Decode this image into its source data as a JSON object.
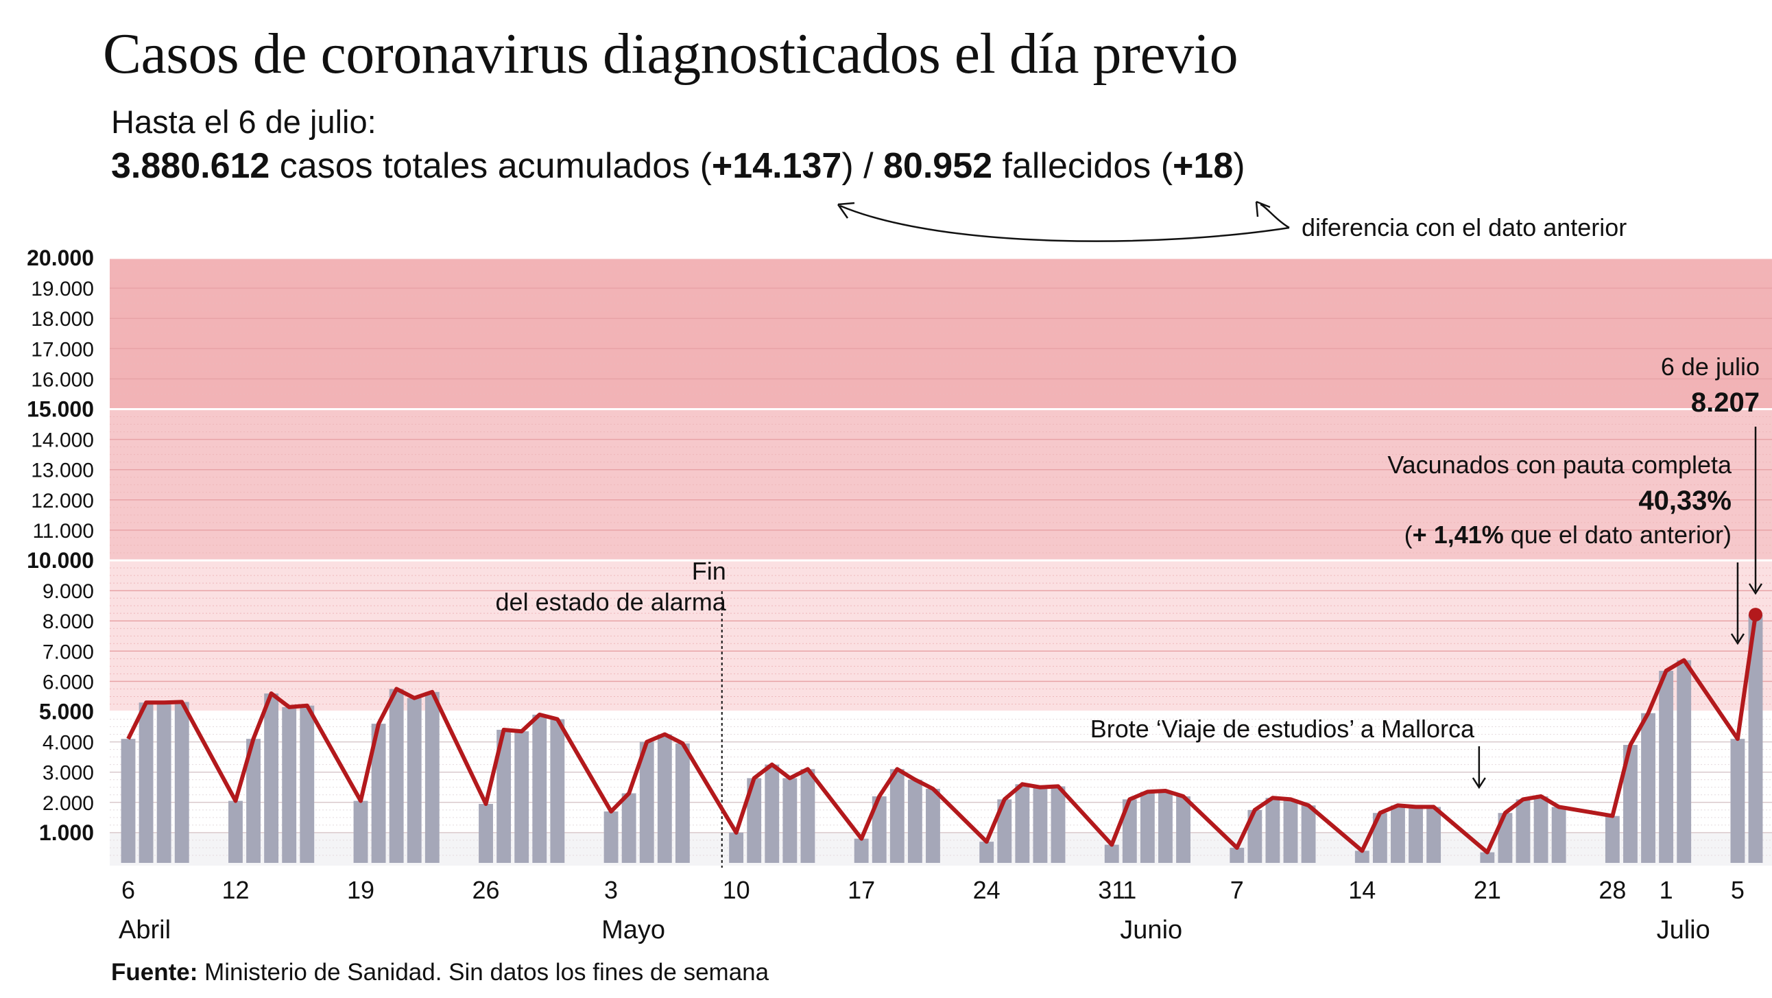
{
  "title": "Casos de coronavirus diagnosticados el día previo",
  "summary": {
    "line1": "Hasta el 6 de julio:",
    "total_cases": "3.880.612",
    "total_cases_text": "casos totales acumulados (",
    "cases_diff": "+14.137",
    "sep": ") / ",
    "deaths": "80.952",
    "deaths_text": "fallecidos (",
    "deaths_diff": "+18",
    "close": ")",
    "diff_note": "diferencia con el dato anterior"
  },
  "source": {
    "label": "Fuente:",
    "text": "Ministerio de Sanidad. Sin datos los fines de semana"
  },
  "colors": {
    "line": "#b3191c",
    "bar": "#a5a7b8",
    "band_high": "#f2b3b6",
    "band_mid": "#f6c8cb",
    "band_low": "#fbe0e2",
    "band_base": "#ffffff"
  },
  "chart_data": {
    "type": "bar",
    "ylim": [
      0,
      20000
    ],
    "y_ticks": [
      "1.000",
      "2.000",
      "3.000",
      "4.000",
      "5.000",
      "6.000",
      "7.000",
      "8.000",
      "9.000",
      "10.000",
      "11.000",
      "12.000",
      "13.000",
      "14.000",
      "15.000",
      "16.000",
      "17.000",
      "18.000",
      "19.000",
      "20.000"
    ],
    "y_tick_values": [
      1000,
      2000,
      3000,
      4000,
      5000,
      6000,
      7000,
      8000,
      9000,
      10000,
      11000,
      12000,
      13000,
      14000,
      15000,
      16000,
      17000,
      18000,
      19000,
      20000
    ],
    "bands": [
      5000,
      10000,
      15000,
      20000
    ],
    "grid": true,
    "x": [
      "2021-04-06",
      "2021-04-07",
      "2021-04-08",
      "2021-04-09",
      "2021-04-12",
      "2021-04-13",
      "2021-04-14",
      "2021-04-15",
      "2021-04-16",
      "2021-04-19",
      "2021-04-20",
      "2021-04-21",
      "2021-04-22",
      "2021-04-23",
      "2021-04-26",
      "2021-04-27",
      "2021-04-28",
      "2021-04-29",
      "2021-04-30",
      "2021-05-03",
      "2021-05-04",
      "2021-05-05",
      "2021-05-06",
      "2021-05-07",
      "2021-05-10",
      "2021-05-11",
      "2021-05-12",
      "2021-05-13",
      "2021-05-14",
      "2021-05-17",
      "2021-05-18",
      "2021-05-19",
      "2021-05-20",
      "2021-05-21",
      "2021-05-24",
      "2021-05-25",
      "2021-05-26",
      "2021-05-27",
      "2021-05-28",
      "2021-05-31",
      "2021-06-01",
      "2021-06-02",
      "2021-06-03",
      "2021-06-04",
      "2021-06-07",
      "2021-06-08",
      "2021-06-09",
      "2021-06-10",
      "2021-06-11",
      "2021-06-14",
      "2021-06-15",
      "2021-06-16",
      "2021-06-17",
      "2021-06-18",
      "2021-06-21",
      "2021-06-22",
      "2021-06-23",
      "2021-06-24",
      "2021-06-25",
      "2021-06-28",
      "2021-06-29",
      "2021-06-30",
      "2021-07-01",
      "2021-07-02",
      "2021-07-05",
      "2021-07-06"
    ],
    "values": [
      4100,
      5300,
      5300,
      5320,
      2050,
      4100,
      5600,
      5150,
      5200,
      2050,
      4600,
      5750,
      5450,
      5650,
      1950,
      4400,
      4350,
      4900,
      4750,
      1700,
      2300,
      4000,
      4250,
      3950,
      1000,
      2800,
      3250,
      2800,
      3100,
      800,
      2200,
      3100,
      2750,
      2450,
      700,
      2100,
      2600,
      2500,
      2530,
      600,
      2100,
      2350,
      2380,
      2200,
      500,
      1750,
      2150,
      2100,
      1900,
      400,
      1650,
      1900,
      1850,
      1850,
      350,
      1650,
      2100,
      2200,
      1850,
      1550,
      3900,
      4950,
      6350,
      6700,
      4100,
      8207
    ],
    "x_tick_labels": [
      {
        "label": "6",
        "x": "2021-04-06"
      },
      {
        "label": "12",
        "x": "2021-04-12"
      },
      {
        "label": "19",
        "x": "2021-04-19"
      },
      {
        "label": "26",
        "x": "2021-04-26"
      },
      {
        "label": "3",
        "x": "2021-05-03"
      },
      {
        "label": "10",
        "x": "2021-05-10"
      },
      {
        "label": "17",
        "x": "2021-05-17"
      },
      {
        "label": "24",
        "x": "2021-05-24"
      },
      {
        "label": "31",
        "x": "2021-05-31"
      },
      {
        "label": "1",
        "x": "2021-06-01"
      },
      {
        "label": "7",
        "x": "2021-06-07"
      },
      {
        "label": "14",
        "x": "2021-06-14"
      },
      {
        "label": "21",
        "x": "2021-06-21"
      },
      {
        "label": "28",
        "x": "2021-06-28"
      },
      {
        "label": "1",
        "x": "2021-07-01"
      },
      {
        "label": "5",
        "x": "2021-07-05"
      }
    ],
    "months": [
      {
        "label": "Abril",
        "x": "2021-04-06"
      },
      {
        "label": "Mayo",
        "x": "2021-05-03"
      },
      {
        "label": "Junio",
        "x": "2021-06-01"
      },
      {
        "label": "Julio",
        "x": "2021-07-01"
      }
    ],
    "annotations": {
      "alarm_line1": "Fin",
      "alarm_line2": "del estado de alarma",
      "alarm_x": "2021-05-10",
      "brote": "Brote ‘Viaje de estudios’ a Mallorca",
      "brote_x": "2021-06-21",
      "last_date": "6 de julio",
      "last_value": "8.207",
      "vac_label": "Vacunados con pauta completa",
      "vac_value": "40,33%",
      "vac_diff_open": "(",
      "vac_diff_bold": "+ 1,41%",
      "vac_diff_rest": " que el dato anterior)"
    }
  }
}
